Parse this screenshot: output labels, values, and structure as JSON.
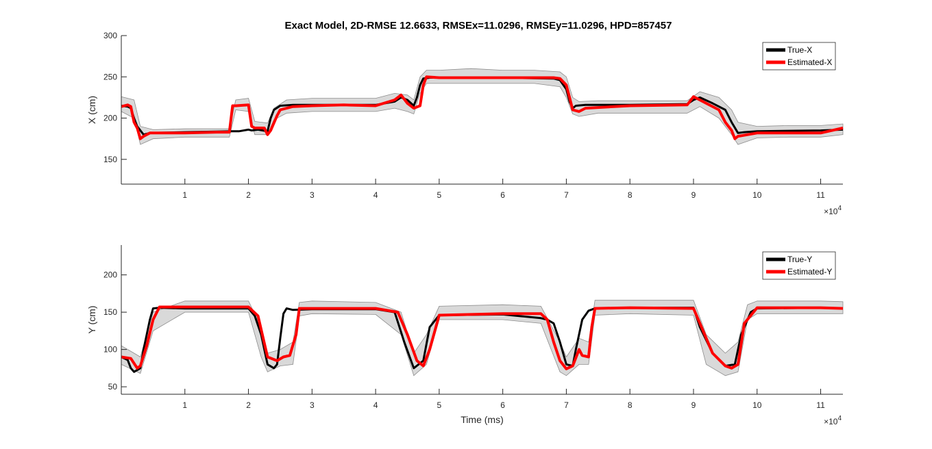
{
  "figure": {
    "title": "Exact Model, 2D-RMSE 12.6633, RMSEx=11.0296, RMSEy=11.0296, HPD=857457"
  },
  "chart_data": [
    {
      "type": "line",
      "ylabel": "X (cm)",
      "xlabel": "",
      "exponent_label": "×10",
      "exponent_power": "4",
      "xlim": [
        0,
        11.35
      ],
      "ylim": [
        120,
        300
      ],
      "xticks": [
        1,
        2,
        3,
        4,
        5,
        6,
        7,
        8,
        9,
        10,
        11
      ],
      "xtick_labels": [
        "1",
        "2",
        "3",
        "4",
        "5",
        "6",
        "7",
        "8",
        "9",
        "10",
        "11"
      ],
      "yticks": [
        150,
        200,
        250,
        300
      ],
      "ytick_labels": [
        "150",
        "200",
        "250",
        "300"
      ],
      "grid": false,
      "legend_position": "top-right",
      "band_color": "#d9d9d9",
      "series": [
        {
          "name": "True-X",
          "color": "#000000",
          "x": [
            0.0,
            0.1,
            0.15,
            0.2,
            0.25,
            0.35,
            0.45,
            1.0,
            1.75,
            1.85,
            2.0,
            2.05,
            2.15,
            2.3,
            2.35,
            2.4,
            2.5,
            2.7,
            3.0,
            3.5,
            4.0,
            4.3,
            4.4,
            4.5,
            4.6,
            4.65,
            4.7,
            4.75,
            4.85,
            5.0,
            6.0,
            6.8,
            6.9,
            7.0,
            7.05,
            7.1,
            7.15,
            7.3,
            8.0,
            8.9,
            9.0,
            9.1,
            9.3,
            9.5,
            9.6,
            9.7,
            9.8,
            10.0,
            11.0,
            11.35
          ],
          "y": [
            215,
            214,
            212,
            200,
            190,
            180,
            182,
            183,
            184,
            184,
            186,
            185,
            186,
            184,
            200,
            210,
            215,
            216,
            216,
            216,
            216,
            220,
            225,
            222,
            215,
            225,
            240,
            248,
            249,
            249,
            249,
            248,
            246,
            235,
            220,
            212,
            215,
            216,
            216,
            217,
            222,
            225,
            218,
            210,
            195,
            182,
            183,
            184,
            185,
            186
          ]
        },
        {
          "name": "Estimated-X",
          "color": "#ff0000",
          "x": [
            0.0,
            0.1,
            0.15,
            0.2,
            0.25,
            0.3,
            0.35,
            0.45,
            1.0,
            1.5,
            1.7,
            1.75,
            1.8,
            2.0,
            2.05,
            2.1,
            2.25,
            2.3,
            2.35,
            2.45,
            2.5,
            2.7,
            3.0,
            3.5,
            4.0,
            4.3,
            4.4,
            4.5,
            4.6,
            4.7,
            4.75,
            4.8,
            5.0,
            6.0,
            6.8,
            6.9,
            7.0,
            7.05,
            7.1,
            7.2,
            7.3,
            8.0,
            8.9,
            9.0,
            9.2,
            9.4,
            9.5,
            9.6,
            9.65,
            9.7,
            10.0,
            11.0,
            11.35
          ],
          "y": [
            214,
            216,
            214,
            195,
            188,
            175,
            178,
            182,
            182,
            183,
            183,
            215,
            215,
            216,
            190,
            188,
            188,
            180,
            185,
            203,
            210,
            214,
            215,
            216,
            215,
            222,
            228,
            218,
            212,
            215,
            240,
            250,
            249,
            249,
            249,
            248,
            240,
            225,
            210,
            208,
            212,
            215,
            216,
            226,
            218,
            210,
            195,
            185,
            175,
            178,
            182,
            182,
            188
          ]
        }
      ],
      "band": {
        "x": [
          0.0,
          0.2,
          0.3,
          0.5,
          1.0,
          1.7,
          1.8,
          2.0,
          2.1,
          2.3,
          2.4,
          2.6,
          3.0,
          3.5,
          4.0,
          4.3,
          4.5,
          4.6,
          4.7,
          4.8,
          5.0,
          5.5,
          6.0,
          6.5,
          6.9,
          7.0,
          7.1,
          7.2,
          7.5,
          8.0,
          8.9,
          9.1,
          9.4,
          9.6,
          9.7,
          10.0,
          10.5,
          11.0,
          11.35
        ],
        "upper": [
          226,
          222,
          190,
          186,
          187,
          187,
          222,
          224,
          196,
          194,
          212,
          222,
          224,
          224,
          224,
          230,
          228,
          222,
          250,
          258,
          258,
          260,
          258,
          258,
          256,
          250,
          225,
          220,
          221,
          221,
          221,
          232,
          225,
          210,
          195,
          190,
          191,
          191,
          193
        ],
        "lower": [
          208,
          200,
          168,
          175,
          177,
          177,
          210,
          208,
          180,
          180,
          198,
          206,
          208,
          208,
          208,
          212,
          208,
          205,
          230,
          242,
          242,
          242,
          242,
          242,
          238,
          225,
          205,
          202,
          206,
          206,
          206,
          214,
          200,
          180,
          168,
          176,
          177,
          177,
          180
        ]
      }
    },
    {
      "type": "line",
      "ylabel": "Y (cm)",
      "xlabel": "Time (ms)",
      "exponent_label": "×10",
      "exponent_power": "4",
      "xlim": [
        0,
        11.35
      ],
      "ylim": [
        40,
        240
      ],
      "xticks": [
        1,
        2,
        3,
        4,
        5,
        6,
        7,
        8,
        9,
        10,
        11
      ],
      "xtick_labels": [
        "1",
        "2",
        "3",
        "4",
        "5",
        "6",
        "7",
        "8",
        "9",
        "10",
        "11"
      ],
      "yticks": [
        50,
        100,
        150,
        200
      ],
      "ytick_labels": [
        "50",
        "100",
        "150",
        "200"
      ],
      "grid": false,
      "legend_position": "top-right",
      "band_color": "#d9d9d9",
      "series": [
        {
          "name": "True-Y",
          "color": "#000000",
          "x": [
            0.0,
            0.1,
            0.15,
            0.2,
            0.3,
            0.35,
            0.45,
            0.5,
            0.6,
            1.0,
            2.0,
            2.1,
            2.2,
            2.3,
            2.4,
            2.45,
            2.5,
            2.55,
            2.6,
            2.7,
            3.0,
            4.0,
            4.3,
            4.45,
            4.6,
            4.75,
            4.85,
            5.0,
            6.0,
            6.6,
            6.7,
            6.8,
            6.9,
            7.0,
            7.1,
            7.15,
            7.25,
            7.35,
            7.45,
            8.0,
            9.0,
            9.1,
            9.3,
            9.5,
            9.65,
            9.75,
            9.9,
            10.0,
            11.0,
            11.35
          ],
          "y": [
            90,
            86,
            75,
            70,
            75,
            100,
            140,
            155,
            156,
            155,
            155,
            145,
            120,
            80,
            75,
            80,
            115,
            148,
            155,
            153,
            154,
            154,
            150,
            110,
            75,
            85,
            130,
            146,
            147,
            142,
            140,
            135,
            110,
            80,
            78,
            100,
            140,
            152,
            155,
            156,
            156,
            130,
            95,
            78,
            80,
            120,
            150,
            155,
            156,
            155
          ]
        },
        {
          "name": "Estimated-Y",
          "color": "#ff0000",
          "x": [
            0.0,
            0.15,
            0.25,
            0.3,
            0.4,
            0.5,
            0.6,
            1.0,
            2.0,
            2.15,
            2.3,
            2.45,
            2.55,
            2.65,
            2.75,
            2.8,
            3.0,
            4.0,
            4.35,
            4.5,
            4.65,
            4.75,
            4.85,
            5.0,
            6.0,
            6.6,
            6.7,
            6.8,
            6.9,
            7.0,
            7.1,
            7.2,
            7.25,
            7.35,
            7.4,
            7.45,
            8.0,
            9.0,
            9.1,
            9.3,
            9.5,
            9.6,
            9.7,
            9.8,
            10.0,
            11.0,
            11.35
          ],
          "y": [
            90,
            88,
            75,
            78,
            105,
            140,
            157,
            157,
            157,
            145,
            90,
            85,
            90,
            92,
            120,
            155,
            155,
            155,
            150,
            120,
            85,
            78,
            100,
            146,
            148,
            148,
            140,
            110,
            85,
            74,
            78,
            100,
            92,
            90,
            130,
            155,
            156,
            155,
            135,
            95,
            78,
            75,
            80,
            135,
            156,
            156,
            155
          ]
        }
      ],
      "band": {
        "x": [
          0.0,
          0.2,
          0.3,
          0.5,
          1.0,
          2.0,
          2.2,
          2.3,
          2.5,
          2.7,
          2.8,
          3.0,
          4.0,
          4.4,
          4.6,
          4.8,
          5.0,
          6.0,
          6.6,
          6.9,
          7.0,
          7.2,
          7.35,
          7.45,
          8.0,
          9.0,
          9.2,
          9.5,
          9.7,
          9.85,
          10.0,
          11.0,
          11.35
        ],
        "upper": [
          105,
          95,
          90,
          150,
          165,
          165,
          130,
          95,
          100,
          110,
          163,
          165,
          163,
          150,
          95,
          120,
          158,
          160,
          158,
          110,
          90,
          115,
          110,
          166,
          166,
          166,
          120,
          95,
          110,
          160,
          165,
          165,
          164
        ],
        "lower": [
          80,
          72,
          68,
          125,
          150,
          150,
          90,
          70,
          78,
          80,
          145,
          148,
          147,
          120,
          65,
          80,
          140,
          140,
          135,
          70,
          65,
          80,
          80,
          146,
          148,
          146,
          80,
          65,
          70,
          140,
          148,
          148,
          148
        ]
      }
    }
  ]
}
